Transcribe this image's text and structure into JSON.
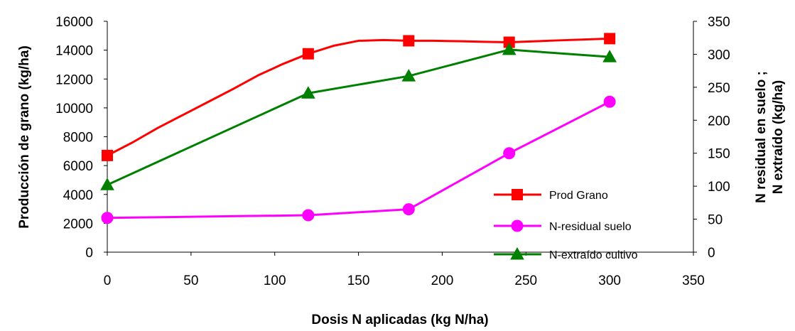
{
  "chart_data": {
    "type": "line",
    "xlabel": "Dosis N aplicadas (kg N/ha)",
    "ylabel_left": "Producción de grano (kg/ha)",
    "ylabel_right_line1": "N residual en suelo ;",
    "ylabel_right_line2": "N extraído (kg/ha)",
    "xlim": [
      0,
      350
    ],
    "x_ticks": [
      "0",
      "50",
      "100",
      "150",
      "200",
      "250",
      "300",
      "350"
    ],
    "ylim_left": [
      0,
      16000
    ],
    "y_ticks_left": [
      "0",
      "2000",
      "4000",
      "6000",
      "8000",
      "10000",
      "12000",
      "14000",
      "16000"
    ],
    "ylim_right": [
      0,
      350
    ],
    "y_ticks_right": [
      "0",
      "50",
      "100",
      "150",
      "200",
      "250",
      "300",
      "350"
    ],
    "grid": false,
    "legend_position": "lower-right",
    "series": [
      {
        "name": "Prod Grano",
        "axis": "left",
        "color": "#FF0000",
        "marker": "square",
        "points": [
          [
            0,
            6700
          ],
          [
            120,
            13750
          ],
          [
            180,
            14650
          ],
          [
            240,
            14550
          ],
          [
            300,
            14800
          ]
        ],
        "curve": [
          [
            0,
            6700
          ],
          [
            15,
            7600
          ],
          [
            30,
            8600
          ],
          [
            45,
            9500
          ],
          [
            60,
            10400
          ],
          [
            75,
            11300
          ],
          [
            90,
            12250
          ],
          [
            105,
            13050
          ],
          [
            120,
            13750
          ],
          [
            135,
            14300
          ],
          [
            150,
            14650
          ],
          [
            165,
            14700
          ],
          [
            180,
            14650
          ],
          [
            195,
            14650
          ],
          [
            210,
            14620
          ],
          [
            225,
            14580
          ],
          [
            240,
            14550
          ],
          [
            270,
            14680
          ],
          [
            300,
            14800
          ]
        ]
      },
      {
        "name": "N-residual suelo",
        "axis": "right",
        "color": "#FF00FF",
        "marker": "circle",
        "points": [
          [
            0,
            52
          ],
          [
            120,
            56
          ],
          [
            180,
            65
          ],
          [
            240,
            150
          ],
          [
            300,
            228
          ]
        ]
      },
      {
        "name": "N-extraído cultivo",
        "axis": "right",
        "color": "#008000",
        "marker": "triangle",
        "points": [
          [
            0,
            102
          ],
          [
            120,
            241
          ],
          [
            180,
            267
          ],
          [
            240,
            307
          ],
          [
            300,
            296
          ]
        ]
      }
    ]
  }
}
